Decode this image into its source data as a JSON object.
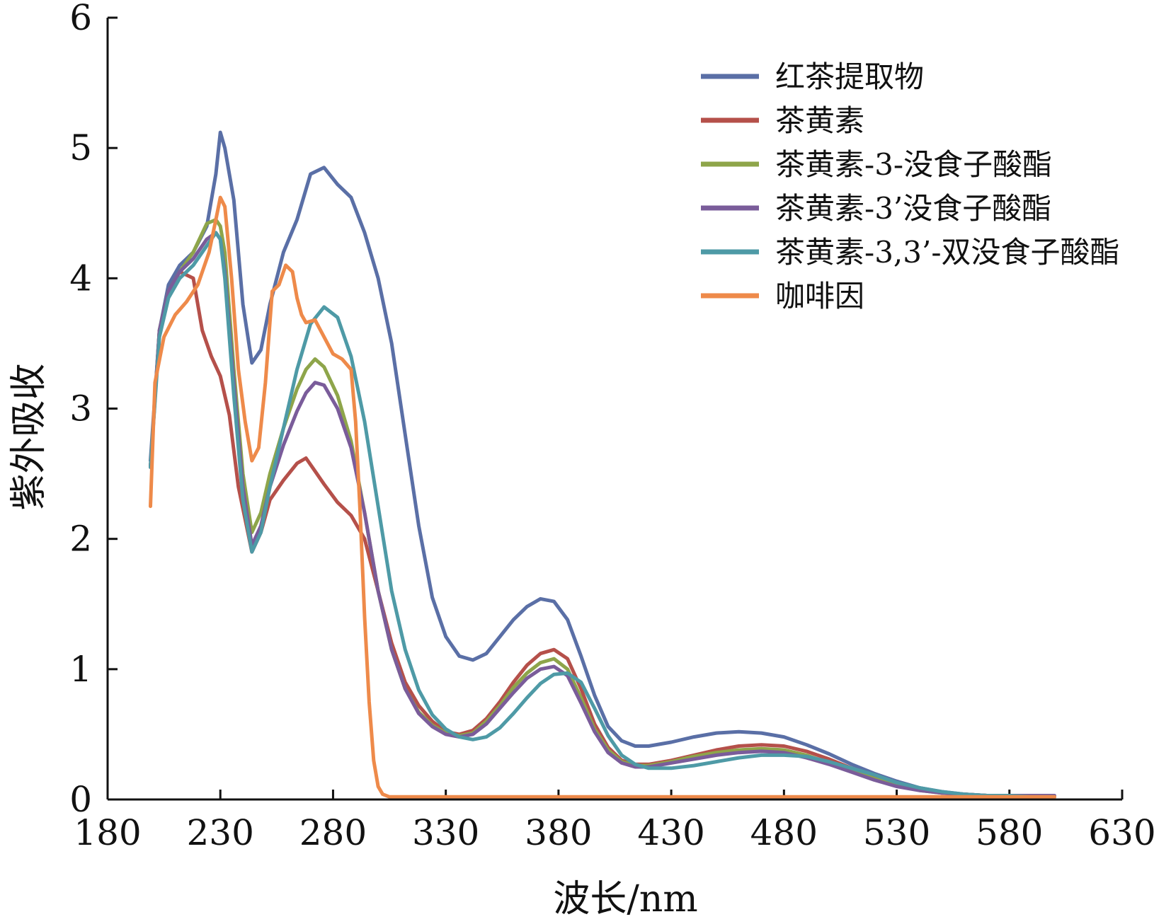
{
  "chart_data": {
    "type": "line",
    "xlabel": "波长/nm",
    "ylabel": "紫外吸收",
    "xlim": [
      180,
      630
    ],
    "ylim": [
      0,
      6
    ],
    "xticks": [
      "180",
      "230",
      "280",
      "330",
      "380",
      "430",
      "480",
      "530",
      "580",
      "630"
    ],
    "yticks": [
      "0",
      "1",
      "2",
      "3",
      "4",
      "5",
      "6"
    ],
    "grid": false,
    "legend_position": "top-right",
    "series": [
      {
        "name": "红茶提取物",
        "color": "#5a6fa6",
        "x": [
          199,
          203,
          207,
          212,
          218,
          224,
          228,
          230,
          232,
          236,
          240,
          244,
          248,
          252,
          258,
          264,
          270,
          276,
          282,
          288,
          294,
          300,
          306,
          312,
          318,
          324,
          330,
          336,
          342,
          348,
          354,
          360,
          366,
          372,
          378,
          384,
          390,
          396,
          402,
          408,
          414,
          420,
          430,
          440,
          450,
          460,
          470,
          480,
          490,
          500,
          510,
          520,
          530,
          540,
          550,
          560,
          570,
          580,
          590,
          600
        ],
        "y": [
          2.6,
          3.6,
          3.95,
          4.1,
          4.2,
          4.4,
          4.8,
          5.12,
          5.0,
          4.6,
          3.8,
          3.35,
          3.45,
          3.8,
          4.2,
          4.45,
          4.8,
          4.85,
          4.72,
          4.62,
          4.35,
          4.0,
          3.5,
          2.8,
          2.1,
          1.55,
          1.25,
          1.1,
          1.07,
          1.12,
          1.25,
          1.38,
          1.48,
          1.54,
          1.52,
          1.38,
          1.1,
          0.8,
          0.56,
          0.45,
          0.41,
          0.41,
          0.44,
          0.48,
          0.51,
          0.52,
          0.51,
          0.48,
          0.42,
          0.35,
          0.27,
          0.2,
          0.14,
          0.09,
          0.06,
          0.04,
          0.03,
          0.03,
          0.02,
          0.02
        ]
      },
      {
        "name": "茶黄素",
        "color": "#b5504a",
        "x": [
          199,
          203,
          207,
          212,
          218,
          222,
          226,
          230,
          234,
          238,
          244,
          248,
          252,
          258,
          264,
          268,
          272,
          276,
          282,
          288,
          294,
          300,
          306,
          312,
          318,
          324,
          330,
          336,
          342,
          348,
          354,
          360,
          366,
          372,
          378,
          384,
          390,
          396,
          402,
          408,
          414,
          420,
          430,
          440,
          450,
          460,
          470,
          480,
          490,
          500,
          510,
          520,
          530,
          540,
          550,
          560,
          570,
          580,
          590,
          600
        ],
        "y": [
          2.55,
          3.6,
          3.9,
          4.05,
          4.0,
          3.6,
          3.4,
          3.25,
          2.95,
          2.4,
          1.9,
          2.05,
          2.3,
          2.45,
          2.58,
          2.62,
          2.52,
          2.42,
          2.28,
          2.18,
          2.0,
          1.6,
          1.2,
          0.9,
          0.72,
          0.6,
          0.52,
          0.5,
          0.53,
          0.62,
          0.75,
          0.9,
          1.03,
          1.12,
          1.15,
          1.08,
          0.85,
          0.58,
          0.4,
          0.3,
          0.27,
          0.27,
          0.3,
          0.34,
          0.38,
          0.41,
          0.42,
          0.41,
          0.37,
          0.31,
          0.24,
          0.17,
          0.12,
          0.08,
          0.05,
          0.04,
          0.03,
          0.03,
          0.02,
          0.02
        ]
      },
      {
        "name": "茶黄素-3-没食子酸酯",
        "color": "#8ea54a",
        "x": [
          199,
          203,
          207,
          212,
          218,
          224,
          228,
          230,
          232,
          236,
          240,
          244,
          248,
          252,
          258,
          264,
          268,
          272,
          276,
          282,
          288,
          294,
          300,
          306,
          312,
          318,
          324,
          330,
          336,
          342,
          348,
          354,
          360,
          366,
          372,
          378,
          384,
          390,
          396,
          402,
          408,
          414,
          420,
          430,
          440,
          450,
          460,
          470,
          480,
          490,
          500,
          510,
          520,
          530,
          540,
          550,
          560,
          570,
          580,
          590,
          600
        ],
        "y": [
          2.55,
          3.6,
          3.9,
          4.05,
          4.2,
          4.42,
          4.45,
          4.4,
          4.2,
          3.3,
          2.5,
          2.05,
          2.2,
          2.5,
          2.85,
          3.15,
          3.3,
          3.38,
          3.32,
          3.1,
          2.75,
          2.2,
          1.6,
          1.15,
          0.85,
          0.67,
          0.57,
          0.51,
          0.49,
          0.51,
          0.6,
          0.72,
          0.86,
          0.97,
          1.05,
          1.08,
          1.0,
          0.78,
          0.54,
          0.38,
          0.29,
          0.26,
          0.26,
          0.29,
          0.33,
          0.36,
          0.38,
          0.39,
          0.38,
          0.34,
          0.28,
          0.22,
          0.16,
          0.11,
          0.07,
          0.05,
          0.04,
          0.03,
          0.03,
          0.02,
          0.02
        ]
      },
      {
        "name": "茶黄素-3’没食子酸酯",
        "color": "#7a5c9a",
        "x": [
          199,
          203,
          207,
          212,
          218,
          224,
          228,
          230,
          232,
          236,
          240,
          244,
          248,
          252,
          258,
          264,
          268,
          272,
          276,
          282,
          288,
          294,
          300,
          306,
          312,
          318,
          324,
          330,
          336,
          342,
          348,
          354,
          360,
          366,
          372,
          378,
          384,
          390,
          396,
          402,
          408,
          414,
          420,
          430,
          440,
          450,
          460,
          470,
          480,
          490,
          500,
          510,
          520,
          530,
          540,
          550,
          560,
          570,
          580,
          590,
          600
        ],
        "y": [
          2.55,
          3.6,
          3.9,
          4.05,
          4.15,
          4.3,
          4.35,
          4.3,
          4.05,
          3.2,
          2.4,
          1.95,
          2.1,
          2.4,
          2.72,
          2.98,
          3.12,
          3.2,
          3.18,
          3.0,
          2.7,
          2.2,
          1.6,
          1.15,
          0.85,
          0.66,
          0.56,
          0.5,
          0.48,
          0.5,
          0.58,
          0.7,
          0.82,
          0.93,
          1.0,
          1.02,
          0.95,
          0.74,
          0.52,
          0.36,
          0.28,
          0.25,
          0.25,
          0.28,
          0.31,
          0.34,
          0.36,
          0.37,
          0.36,
          0.32,
          0.27,
          0.21,
          0.15,
          0.1,
          0.07,
          0.05,
          0.04,
          0.03,
          0.03,
          0.03,
          0.03
        ]
      },
      {
        "name": "茶黄素-3,3’-双没食子酸酯",
        "color": "#4e9aa6",
        "x": [
          199,
          203,
          207,
          212,
          218,
          224,
          228,
          230,
          232,
          236,
          240,
          244,
          248,
          252,
          258,
          264,
          270,
          276,
          282,
          288,
          294,
          300,
          306,
          312,
          318,
          324,
          330,
          336,
          342,
          348,
          354,
          360,
          366,
          372,
          378,
          384,
          390,
          396,
          402,
          408,
          414,
          420,
          430,
          440,
          450,
          460,
          470,
          480,
          490,
          500,
          510,
          520,
          530,
          540,
          550,
          560,
          570,
          580,
          590,
          600
        ],
        "y": [
          2.55,
          3.55,
          3.85,
          4.0,
          4.1,
          4.25,
          4.35,
          4.3,
          4.0,
          3.1,
          2.3,
          1.9,
          2.05,
          2.4,
          2.85,
          3.3,
          3.65,
          3.78,
          3.7,
          3.4,
          2.9,
          2.25,
          1.6,
          1.15,
          0.84,
          0.65,
          0.54,
          0.48,
          0.46,
          0.48,
          0.55,
          0.66,
          0.78,
          0.89,
          0.96,
          0.97,
          0.9,
          0.7,
          0.49,
          0.34,
          0.27,
          0.24,
          0.24,
          0.26,
          0.29,
          0.32,
          0.34,
          0.34,
          0.33,
          0.29,
          0.24,
          0.19,
          0.13,
          0.09,
          0.06,
          0.04,
          0.03,
          0.03,
          0.02,
          0.02
        ]
      },
      {
        "name": "咖啡因",
        "color": "#ee8a4a",
        "x": [
          199,
          201,
          205,
          210,
          215,
          220,
          225,
          228,
          230,
          232,
          235,
          238,
          241,
          244,
          247,
          250,
          253,
          256,
          259,
          262,
          264,
          266,
          268,
          272,
          276,
          280,
          284,
          288,
          290,
          292,
          294,
          296,
          298,
          300,
          302,
          305,
          310,
          320,
          340,
          380,
          420,
          460,
          500,
          540,
          580,
          600
        ],
        "y": [
          2.25,
          3.2,
          3.55,
          3.72,
          3.82,
          3.95,
          4.2,
          4.45,
          4.62,
          4.55,
          4.0,
          3.3,
          2.9,
          2.6,
          2.7,
          3.2,
          3.9,
          3.95,
          4.1,
          4.05,
          3.85,
          3.72,
          3.66,
          3.68,
          3.55,
          3.42,
          3.38,
          3.3,
          2.9,
          2.2,
          1.4,
          0.75,
          0.3,
          0.1,
          0.04,
          0.02,
          0.02,
          0.02,
          0.02,
          0.02,
          0.02,
          0.02,
          0.02,
          0.02,
          0.02,
          0.02
        ]
      }
    ]
  }
}
